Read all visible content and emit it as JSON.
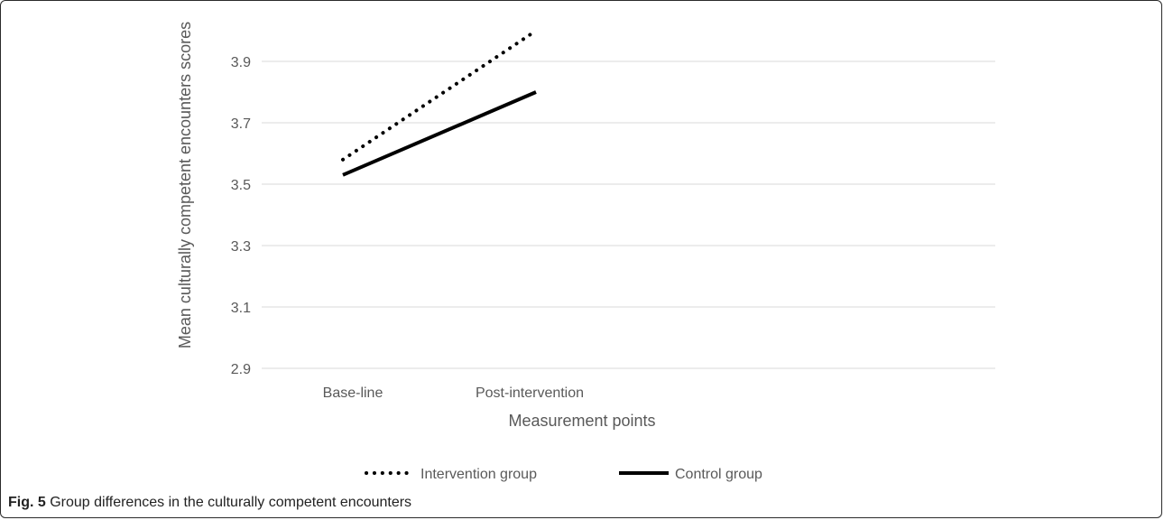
{
  "caption": {
    "label": "Fig. 5",
    "text": "Group differences in the culturally competent encounters"
  },
  "chart_data": {
    "type": "line",
    "categories": [
      "Base-line",
      "Post-intervention"
    ],
    "series": [
      {
        "name": "Intervention group",
        "values": [
          3.58,
          4.0
        ],
        "style": "dotted",
        "color": "#000000"
      },
      {
        "name": "Control group",
        "values": [
          3.53,
          3.8
        ],
        "style": "solid",
        "color": "#000000"
      }
    ],
    "title": "",
    "xlabel": "Measurement points",
    "ylabel": "Mean culturally competent encounters scores",
    "ylim": [
      2.9,
      4.0
    ],
    "yticks": [
      "2.9",
      "3.1",
      "3.3",
      "3.5",
      "3.7",
      "3.9"
    ],
    "grid": true,
    "legend_position": "bottom"
  }
}
